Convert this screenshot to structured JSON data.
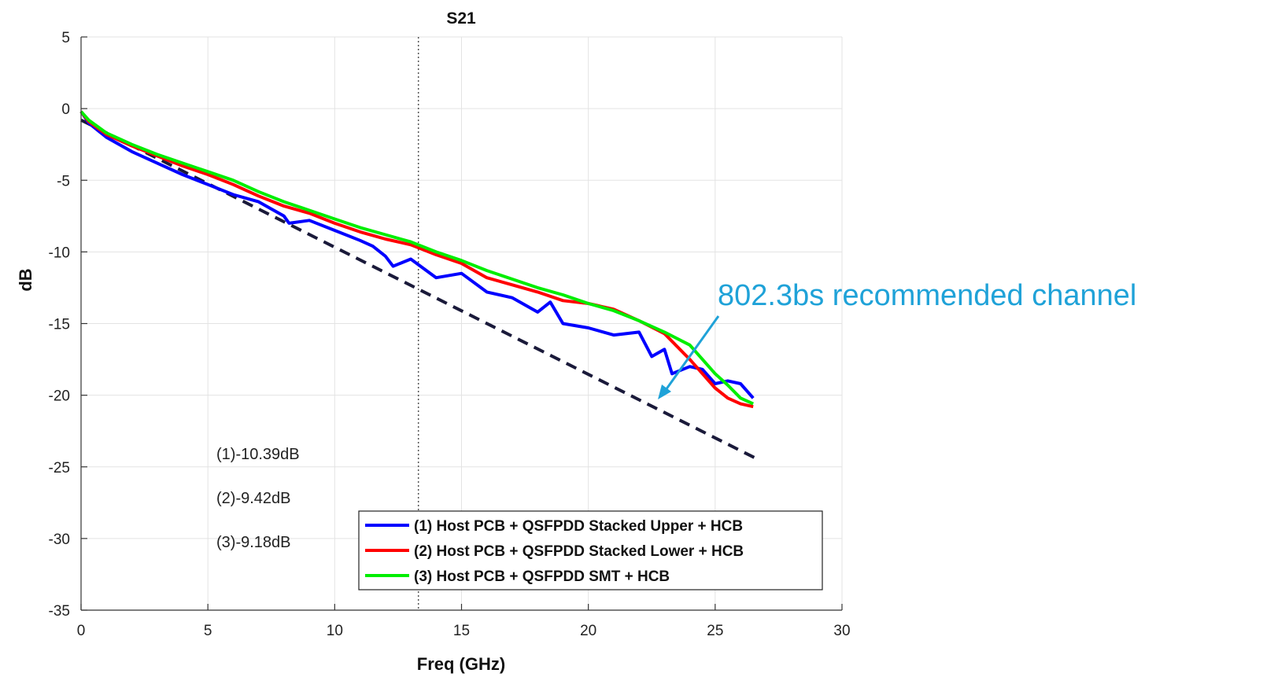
{
  "chart_data": {
    "type": "line",
    "title": "S21",
    "xlabel": "Freq (GHz)",
    "ylabel": "dB",
    "xlim": [
      0,
      30
    ],
    "ylim": [
      -35,
      5
    ],
    "xticks": [
      0,
      5,
      10,
      15,
      20,
      25,
      30
    ],
    "yticks": [
      5,
      0,
      -5,
      -10,
      -15,
      -20,
      -25,
      -30,
      -35
    ],
    "grid": true,
    "marker_line_x": 13.3,
    "legend_position": "bottom-center",
    "series": [
      {
        "name": "(1) Host PCB + QSFPDD Stacked Upper + HCB",
        "color": "#0000ff",
        "x": [
          0,
          0.3,
          1,
          2,
          3,
          4,
          5,
          6,
          7,
          7.5,
          8,
          8.2,
          9,
          10,
          11,
          11.5,
          12,
          12.3,
          13,
          14,
          15,
          16,
          17,
          18,
          18.5,
          19,
          20,
          21,
          22,
          22.5,
          23,
          23.3,
          24,
          24.5,
          25,
          25.5,
          26,
          26.5
        ],
        "y": [
          -0.2,
          -1.0,
          -2.0,
          -3.0,
          -3.8,
          -4.6,
          -5.3,
          -6.0,
          -6.5,
          -7.0,
          -7.5,
          -8.0,
          -7.8,
          -8.5,
          -9.2,
          -9.6,
          -10.3,
          -11.0,
          -10.5,
          -11.8,
          -11.5,
          -12.8,
          -13.2,
          -14.2,
          -13.5,
          -15.0,
          -15.3,
          -15.8,
          -15.6,
          -17.3,
          -16.8,
          -18.5,
          -18.0,
          -18.2,
          -19.2,
          -19.0,
          -19.2,
          -20.2
        ]
      },
      {
        "name": "(2) Host PCB + QSFPDD Stacked Lower + HCB",
        "color": "#ff0000",
        "x": [
          0,
          0.3,
          1,
          2,
          3,
          4,
          5,
          6,
          7,
          8,
          9,
          10,
          11,
          12,
          13,
          14,
          15,
          16,
          17,
          18,
          19,
          20,
          21,
          22,
          23,
          24,
          25,
          25.5,
          26,
          26.5
        ],
        "y": [
          -0.2,
          -0.9,
          -1.8,
          -2.6,
          -3.3,
          -4.0,
          -4.6,
          -5.3,
          -6.1,
          -6.8,
          -7.3,
          -8.0,
          -8.6,
          -9.1,
          -9.5,
          -10.2,
          -10.8,
          -11.8,
          -12.3,
          -12.8,
          -13.4,
          -13.6,
          -14.0,
          -14.8,
          -15.7,
          -17.5,
          -19.5,
          -20.2,
          -20.6,
          -20.8
        ]
      },
      {
        "name": "(3) Host PCB + QSFPDD SMT + HCB",
        "color": "#00ee00",
        "x": [
          0,
          0.3,
          1,
          2,
          3,
          4,
          5,
          6,
          7,
          8,
          9,
          10,
          11,
          12,
          13,
          14,
          15,
          16,
          17,
          18,
          19,
          20,
          21,
          22,
          23,
          24,
          25,
          25.5,
          26,
          26.5
        ],
        "y": [
          -0.2,
          -0.8,
          -1.7,
          -2.5,
          -3.2,
          -3.8,
          -4.4,
          -5.0,
          -5.8,
          -6.5,
          -7.1,
          -7.7,
          -8.3,
          -8.8,
          -9.3,
          -10.0,
          -10.6,
          -11.3,
          -11.9,
          -12.5,
          -13.0,
          -13.6,
          -14.1,
          -14.8,
          -15.6,
          -16.5,
          -18.5,
          -19.3,
          -20.2,
          -20.6
        ]
      }
    ],
    "reference_line": {
      "x": [
        0,
        26.6
      ],
      "y": [
        -0.8,
        -24.4
      ],
      "color": "#1a1a3a",
      "style": "dashed"
    },
    "annotations": [
      "(1)-10.39dB",
      "(2)-9.42dB",
      "(3)-9.18dB"
    ],
    "callout": "802.3bs recommended channel",
    "callout_color": "#1fa2d8"
  }
}
